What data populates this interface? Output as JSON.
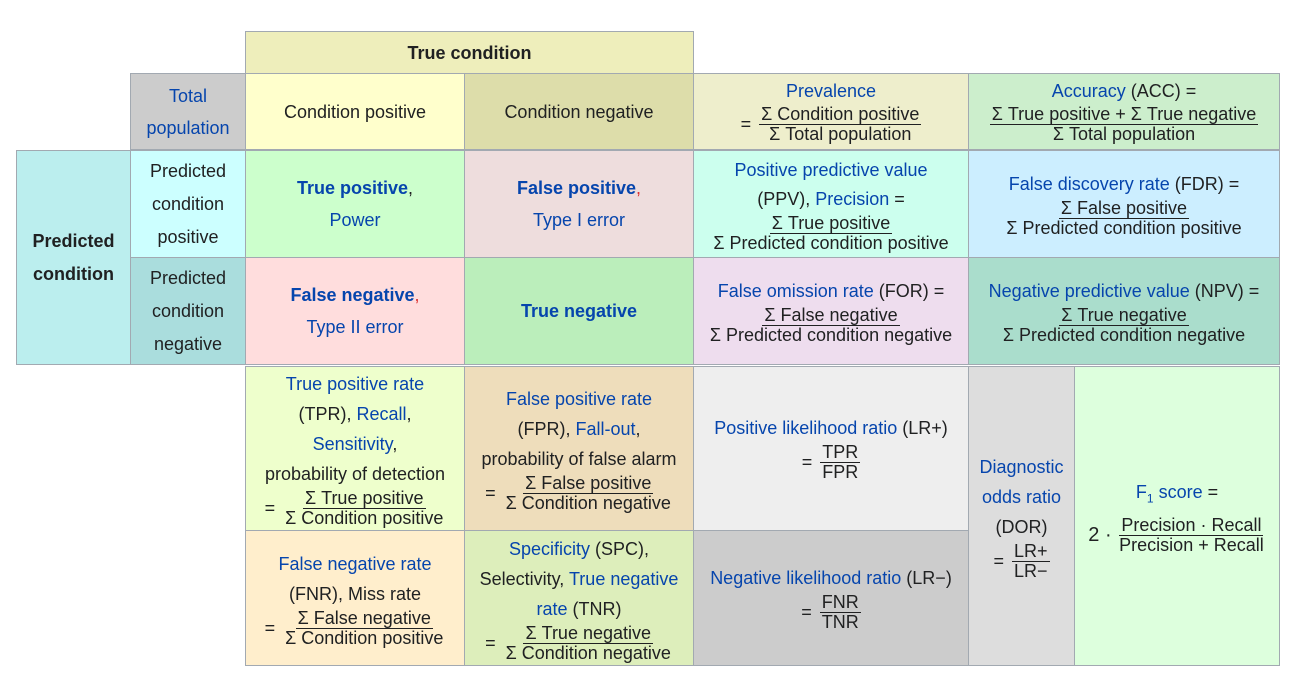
{
  "header": {
    "true_condition": "True condition",
    "total_population": [
      "Total",
      "population"
    ],
    "condition_positive": "Condition positive",
    "condition_negative": "Condition negative",
    "predicted_condition": [
      "Predicted",
      "condition"
    ],
    "predicted_positive": [
      "Predicted",
      "condition",
      "positive"
    ],
    "predicted_negative": [
      "Predicted",
      "condition",
      "negative"
    ]
  },
  "cells": {
    "tp": {
      "term": "True positive",
      "sep": ",",
      "sub": "Power"
    },
    "fp": {
      "term": "False positive",
      "sep": ",",
      "sub": "Type I error"
    },
    "fn": {
      "term": "False negative",
      "sep": ",",
      "sub": "Type II error"
    },
    "tn": {
      "term": "True negative"
    }
  },
  "metrics": {
    "prevalence": {
      "name": "Prevalence",
      "num": "Σ Condition positive",
      "den": "Σ Total population"
    },
    "accuracy": {
      "name": "Accuracy",
      "abbr": " (ACC) =",
      "num": "Σ True positive + Σ True negative",
      "den": "Σ Total population"
    },
    "ppv": {
      "name": "Positive predictive value",
      "abbr": "(PPV), ",
      "alt": "Precision",
      "eq": " =",
      "num": "Σ True positive",
      "den": "Σ Predicted condition positive"
    },
    "fdr": {
      "name": "False discovery rate",
      "abbr": " (FDR) =",
      "num": "Σ False positive",
      "den": "Σ Predicted condition positive"
    },
    "for": {
      "name": "False omission rate",
      "abbr": " (FOR) =",
      "num": "Σ False negative",
      "den": "Σ Predicted condition negative"
    },
    "npv": {
      "name": "Negative predictive value",
      "abbr": " (NPV) =",
      "num": "Σ True negative",
      "den": "Σ Predicted condition negative"
    },
    "tpr": {
      "name": "True positive rate",
      "abbr": "(TPR), ",
      "alt1": "Recall",
      "alt2": "Sensitivity",
      "desc": "probability of detection",
      "num": "Σ True positive",
      "den": "Σ Condition positive"
    },
    "fpr": {
      "name": "False positive rate",
      "abbr": "(FPR), ",
      "alt": "Fall-out",
      "desc": "probability of false alarm",
      "num": "Σ False positive",
      "den": "Σ Condition negative"
    },
    "lrp": {
      "name": "Positive likelihood ratio",
      "abbr": " (LR+)",
      "num": "TPR",
      "den": "FPR"
    },
    "dor": {
      "name1": "Diagnostic",
      "name2": "odds ratio",
      "abbr": "(DOR)",
      "num": "LR+",
      "den": "LR−"
    },
    "f1": {
      "name": "F",
      "sub": "1",
      "label": " score",
      "eq": " =",
      "prefix": "2 · ",
      "num": "Precision · Recall",
      "den": "Precision + Recall"
    },
    "fnr": {
      "name": "False negative rate",
      "abbr": "(FNR), Miss rate",
      "num": "Σ False negative",
      "den": "Σ Condition positive"
    },
    "spc": {
      "name": "Specificity",
      "abbr": " (SPC),",
      "pre": "Selectivity, ",
      "alt1": "True negative",
      "alt2": "rate",
      "abbr2": " (TNR)",
      "num": "Σ True negative",
      "den": "Σ Condition negative"
    },
    "lrn": {
      "name": "Negative likelihood ratio",
      "abbr": " (LR−)",
      "num": "FNR",
      "den": "TNR"
    }
  },
  "colors": {
    "true_condition": "#eeeebb",
    "total": "#cccccc",
    "cond_pos": "#ffffcc",
    "cond_neg": "#ddddaa",
    "prevalence": "#eeeecc",
    "accuracy": "#cceecc",
    "predicted": "#bbeeee",
    "pred_pos": "#ccffff",
    "pred_neg": "#aadddd",
    "tp": "#ccffcc",
    "fp": "#eedddd",
    "fn": "#ffdddd",
    "tn": "#bbeebb",
    "ppv": "#ccffee",
    "fdr": "#cceeff",
    "for": "#eeddee",
    "npv": "#aaddcc",
    "tpr": "#eeffcc",
    "fpr": "#eeddbb",
    "lrp": "#eeeeee",
    "dor": "#dddddd",
    "f1": "#ddffdd",
    "fnr": "#ffeecc",
    "spc": "#ddeebb",
    "lrn": "#cccccc",
    "link": "#0645ad"
  }
}
